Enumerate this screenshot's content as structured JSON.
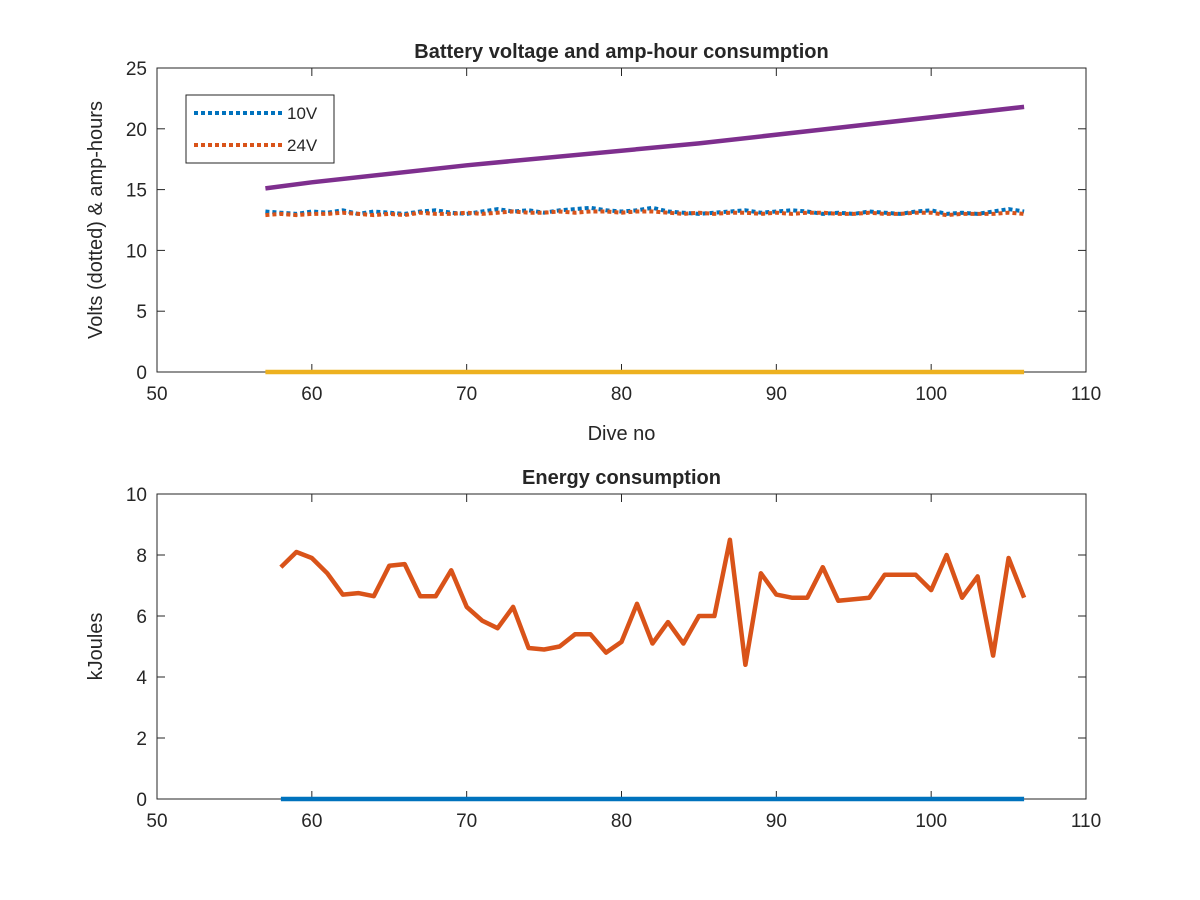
{
  "chart_data": [
    {
      "type": "line",
      "title": "Battery voltage and amp-hour consumption",
      "xlabel": "Dive no",
      "ylabel": "Volts (dotted) & amp-hours",
      "xlim": [
        50,
        110
      ],
      "ylim": [
        0,
        25
      ],
      "xticks": [
        "50",
        "60",
        "70",
        "80",
        "90",
        "100",
        "110"
      ],
      "yticks": [
        "0",
        "5",
        "10",
        "15",
        "20",
        "25"
      ],
      "legend_position": "top-left",
      "series": [
        {
          "name": "10V",
          "style": "dotted",
          "color": "#0072BD",
          "in_legend": true,
          "x": [
            57,
            58,
            59,
            60,
            61,
            62,
            63,
            64,
            65,
            66,
            67,
            68,
            69,
            70,
            71,
            72,
            73,
            74,
            75,
            76,
            77,
            78,
            79,
            80,
            81,
            82,
            83,
            84,
            85,
            86,
            87,
            88,
            89,
            90,
            91,
            92,
            93,
            94,
            95,
            96,
            97,
            98,
            99,
            100,
            101,
            102,
            103,
            104,
            105,
            106
          ],
          "values": [
            13.2,
            13.1,
            13.0,
            13.2,
            13.1,
            13.3,
            13.0,
            13.2,
            13.1,
            13.0,
            13.2,
            13.3,
            13.1,
            13.0,
            13.2,
            13.4,
            13.2,
            13.3,
            13.1,
            13.3,
            13.4,
            13.5,
            13.3,
            13.2,
            13.3,
            13.5,
            13.2,
            13.1,
            13.0,
            13.1,
            13.2,
            13.3,
            13.1,
            13.2,
            13.3,
            13.2,
            13.0,
            13.1,
            13.0,
            13.2,
            13.1,
            13.0,
            13.2,
            13.3,
            13.0,
            13.1,
            13.0,
            13.2,
            13.4,
            13.2
          ]
        },
        {
          "name": "24V",
          "style": "dotted",
          "color": "#D95319",
          "in_legend": true,
          "x": [
            57,
            58,
            59,
            60,
            61,
            62,
            63,
            64,
            65,
            66,
            67,
            68,
            69,
            70,
            71,
            72,
            73,
            74,
            75,
            76,
            77,
            78,
            79,
            80,
            81,
            82,
            83,
            84,
            85,
            86,
            87,
            88,
            89,
            90,
            91,
            92,
            93,
            94,
            95,
            96,
            97,
            98,
            99,
            100,
            101,
            102,
            103,
            104,
            105,
            106
          ],
          "values": [
            12.9,
            13.0,
            12.9,
            13.0,
            13.0,
            13.1,
            13.0,
            12.9,
            13.0,
            12.9,
            13.1,
            13.0,
            13.0,
            13.1,
            13.0,
            13.1,
            13.2,
            13.1,
            13.1,
            13.2,
            13.1,
            13.2,
            13.2,
            13.1,
            13.2,
            13.2,
            13.1,
            13.0,
            13.1,
            13.0,
            13.1,
            13.1,
            13.0,
            13.1,
            13.0,
            13.1,
            13.1,
            13.0,
            13.0,
            13.1,
            13.0,
            13.0,
            13.1,
            13.1,
            12.9,
            13.0,
            13.0,
            13.0,
            13.1,
            13.0
          ]
        },
        {
          "name": "",
          "style": "solid",
          "color": "#7E2F8E",
          "in_legend": false,
          "x": [
            57,
            60,
            70,
            85,
            106
          ],
          "values": [
            15.1,
            15.6,
            17.0,
            18.8,
            21.8
          ]
        },
        {
          "name": "",
          "style": "solid",
          "color": "#EDB120",
          "in_legend": false,
          "x": [
            57,
            106
          ],
          "values": [
            0,
            0
          ]
        }
      ]
    },
    {
      "type": "line",
      "title": "Energy consumption",
      "xlabel": "",
      "ylabel": "kJoules",
      "xlim": [
        50,
        110
      ],
      "ylim": [
        0,
        10
      ],
      "xticks": [
        "50",
        "60",
        "70",
        "80",
        "90",
        "100",
        "110"
      ],
      "yticks": [
        "0",
        "2",
        "4",
        "6",
        "8",
        "10"
      ],
      "series": [
        {
          "name": "",
          "style": "solid",
          "color": "#D95319",
          "x": [
            58,
            59,
            60,
            61,
            62,
            63,
            64,
            65,
            66,
            67,
            68,
            69,
            70,
            71,
            72,
            73,
            74,
            75,
            76,
            77,
            78,
            79,
            80,
            81,
            82,
            83,
            84,
            85,
            86,
            87,
            88,
            89,
            90,
            91,
            92,
            93,
            94,
            95,
            96,
            97,
            98,
            99,
            100,
            101,
            102,
            103,
            104,
            105,
            106
          ],
          "values": [
            7.6,
            8.1,
            7.9,
            7.4,
            6.7,
            6.75,
            6.65,
            7.65,
            7.7,
            6.65,
            6.65,
            7.5,
            6.3,
            5.85,
            5.6,
            6.3,
            4.95,
            4.9,
            5.0,
            5.4,
            5.4,
            4.8,
            5.15,
            6.4,
            5.1,
            5.8,
            5.1,
            6.0,
            6.0,
            8.5,
            4.4,
            7.4,
            6.7,
            6.6,
            6.6,
            7.6,
            6.5,
            6.55,
            6.6,
            7.35,
            7.35,
            7.35,
            6.85,
            8.0,
            6.6,
            7.3,
            4.7,
            7.9,
            6.6
          ]
        },
        {
          "name": "",
          "style": "solid",
          "color": "#0072BD",
          "x": [
            58,
            106
          ],
          "values": [
            0,
            0
          ]
        }
      ]
    }
  ]
}
